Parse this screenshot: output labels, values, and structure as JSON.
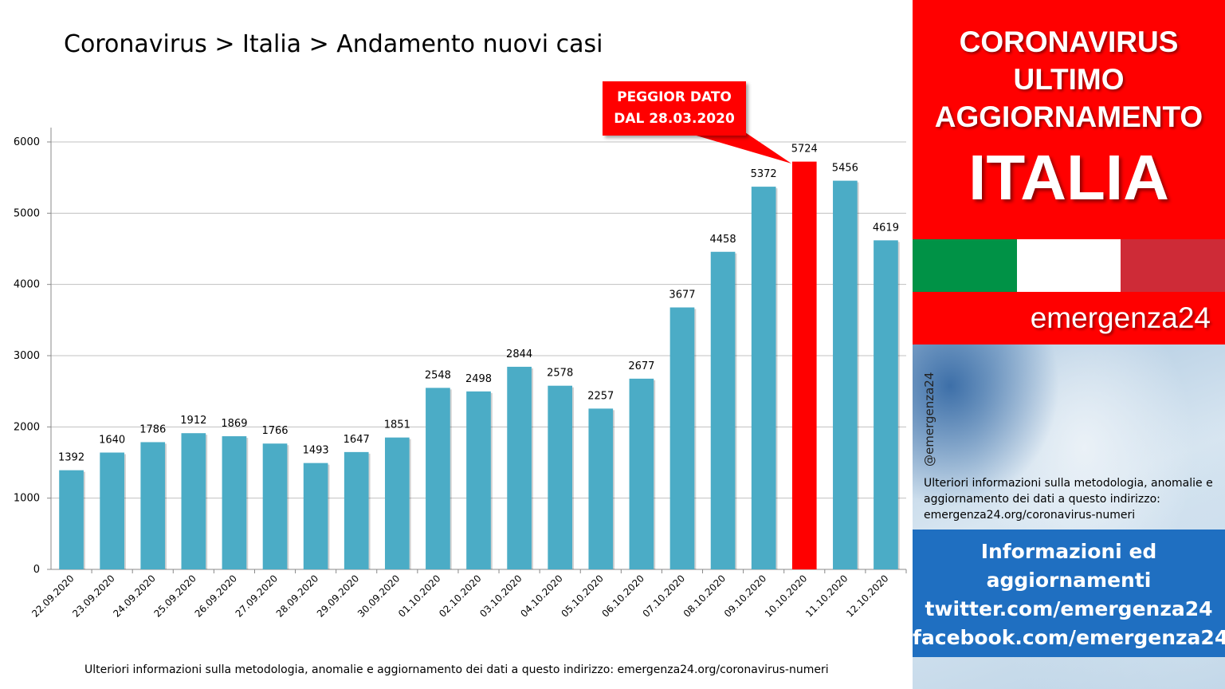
{
  "left": {
    "title": "Coronavirus > Italia > Andamento nuovi casi",
    "footer_note": "Ulteriori informazioni sulla metodologia, anomalie e aggiornamento dei dati a questo indirizzo: emergenza24.org/coronavirus-numeri",
    "callout": {
      "line1": "PEGGIOR DATO",
      "line2": "DAL 28.03.2020"
    }
  },
  "colors": {
    "bar": "#4bacc6",
    "highlight": "#ff0000",
    "grid": "#c0c0c0"
  },
  "chart_data": {
    "type": "bar",
    "categories": [
      "22.09.2020",
      "23.09.2020",
      "24.09.2020",
      "25.09.2020",
      "26.09.2020",
      "27.09.2020",
      "28.09.2020",
      "29.09.2020",
      "30.09.2020",
      "01.10.2020",
      "02.10.2020",
      "03.10.2020",
      "04.10.2020",
      "05.10.2020",
      "06.10.2020",
      "07.10.2020",
      "08.10.2020",
      "09.10.2020",
      "10.10.2020",
      "11.10.2020",
      "12.10.2020"
    ],
    "values": [
      1392,
      1640,
      1786,
      1912,
      1869,
      1766,
      1493,
      1647,
      1851,
      2548,
      2498,
      2844,
      2578,
      2257,
      2677,
      3677,
      4458,
      5372,
      5724,
      5456,
      4619
    ],
    "highlight_category": "10.10.2020",
    "ylim": [
      0,
      6000
    ],
    "yticks": [
      0,
      1000,
      2000,
      3000,
      4000,
      5000,
      6000
    ],
    "grid": true,
    "data_labels": true,
    "legend": "none"
  },
  "right_panel": {
    "header_lines": [
      "CORONAVIRUS",
      "ULTIMO",
      "AGGIORNAMENTO"
    ],
    "header_big": "ITALIA",
    "flag_colors": [
      "#009246",
      "#ffffff",
      "#ce2b37"
    ],
    "brand": "emergenza24",
    "handle": "@emergenza24",
    "note": "Ulteriori informazioni sulla metodologia, anomalie e aggiornamento dei dati a questo indirizzo: emergenza24.org/coronavirus-numeri",
    "info_lines": [
      "Informazioni ed",
      "aggiornamenti",
      "twitter.com/emergenza24",
      "facebook.com/emergenza24"
    ]
  }
}
